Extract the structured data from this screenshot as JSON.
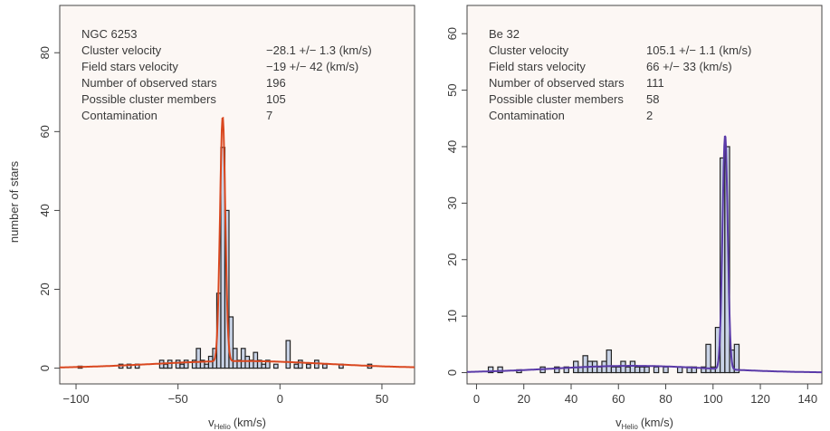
{
  "figure": {
    "ylabel": "number of stars"
  },
  "chart_data": [
    {
      "type": "bar",
      "cluster": "NGC 6253",
      "cluster_color": "#d9342b",
      "fit_color": "#d9471f",
      "info": [
        {
          "label": "Cluster velocity",
          "value": "−28.1 +/− 1.3 (km/s)"
        },
        {
          "label": "Field stars velocity",
          "value": "−19 +/− 42 (km/s)"
        },
        {
          "label": "Number of observed stars",
          "value": "196"
        },
        {
          "label": "Possible cluster members",
          "value": "105"
        },
        {
          "label": "Contamination",
          "value": "7"
        }
      ],
      "xlabel_main": "v",
      "xlabel_sub": "Helio",
      "xlabel_unit": "(km/s)",
      "xlim": [
        -108,
        66
      ],
      "ylim": [
        -4,
        92
      ],
      "xticks": [
        -100,
        -50,
        0,
        50
      ],
      "yticks": [
        0,
        20,
        40,
        60,
        80
      ],
      "bin_width": 2,
      "bars": [
        {
          "x": -98,
          "count": 0.5
        },
        {
          "x": -78,
          "count": 1
        },
        {
          "x": -74,
          "count": 1
        },
        {
          "x": -70,
          "count": 1
        },
        {
          "x": -58,
          "count": 2
        },
        {
          "x": -56,
          "count": 1
        },
        {
          "x": -54,
          "count": 2
        },
        {
          "x": -50,
          "count": 2
        },
        {
          "x": -48,
          "count": 1
        },
        {
          "x": -46,
          "count": 2
        },
        {
          "x": -42,
          "count": 2
        },
        {
          "x": -40,
          "count": 5
        },
        {
          "x": -38,
          "count": 2
        },
        {
          "x": -36,
          "count": 1
        },
        {
          "x": -34,
          "count": 3
        },
        {
          "x": -32,
          "count": 5
        },
        {
          "x": -30,
          "count": 19
        },
        {
          "x": -28,
          "count": 56
        },
        {
          "x": -26,
          "count": 40
        },
        {
          "x": -24,
          "count": 13
        },
        {
          "x": -22,
          "count": 5
        },
        {
          "x": -20,
          "count": 2
        },
        {
          "x": -18,
          "count": 5
        },
        {
          "x": -16,
          "count": 3
        },
        {
          "x": -14,
          "count": 2
        },
        {
          "x": -12,
          "count": 4
        },
        {
          "x": -10,
          "count": 2
        },
        {
          "x": -8,
          "count": 1
        },
        {
          "x": -6,
          "count": 2
        },
        {
          "x": -2,
          "count": 1
        },
        {
          "x": 4,
          "count": 7
        },
        {
          "x": 8,
          "count": 1
        },
        {
          "x": 10,
          "count": 2
        },
        {
          "x": 14,
          "count": 1
        },
        {
          "x": 18,
          "count": 2
        },
        {
          "x": 22,
          "count": 1
        },
        {
          "x": 30,
          "count": 1
        },
        {
          "x": 44,
          "count": 1
        }
      ],
      "fit": {
        "peak": 62,
        "center": -28.1,
        "sigma": 1.3,
        "field_peak": 1.8,
        "field_center": -19,
        "field_sigma": 42
      }
    },
    {
      "type": "bar",
      "cluster": "Be 32",
      "cluster_color": "#6a4bb5",
      "fit_color": "#5a3aa8",
      "info": [
        {
          "label": "Cluster velocity",
          "value": "105.1 +/− 1.1 (km/s)"
        },
        {
          "label": "Field stars velocity",
          "value": "66 +/− 33 (km/s)"
        },
        {
          "label": "Number of observed stars",
          "value": "111"
        },
        {
          "label": "Possible cluster members",
          "value": "58"
        },
        {
          "label": "Contamination",
          "value": "2"
        }
      ],
      "xlabel_main": "v",
      "xlabel_sub": "Helio",
      "xlabel_unit": "(km/s)",
      "xlim": [
        -4,
        146
      ],
      "ylim": [
        -2,
        65
      ],
      "xticks": [
        0,
        20,
        40,
        60,
        80,
        100,
        120,
        140
      ],
      "yticks": [
        0,
        10,
        20,
        30,
        40,
        50,
        60
      ],
      "bin_width": 2,
      "bars": [
        {
          "x": 6,
          "count": 1
        },
        {
          "x": 10,
          "count": 1
        },
        {
          "x": 18,
          "count": 0.5
        },
        {
          "x": 28,
          "count": 1
        },
        {
          "x": 34,
          "count": 1
        },
        {
          "x": 38,
          "count": 1
        },
        {
          "x": 42,
          "count": 2
        },
        {
          "x": 44,
          "count": 1
        },
        {
          "x": 46,
          "count": 3
        },
        {
          "x": 48,
          "count": 2
        },
        {
          "x": 50,
          "count": 2
        },
        {
          "x": 52,
          "count": 1
        },
        {
          "x": 54,
          "count": 2
        },
        {
          "x": 56,
          "count": 4
        },
        {
          "x": 58,
          "count": 1
        },
        {
          "x": 60,
          "count": 1
        },
        {
          "x": 62,
          "count": 2
        },
        {
          "x": 64,
          "count": 1
        },
        {
          "x": 66,
          "count": 2
        },
        {
          "x": 68,
          "count": 1
        },
        {
          "x": 70,
          "count": 1
        },
        {
          "x": 72,
          "count": 1
        },
        {
          "x": 76,
          "count": 1
        },
        {
          "x": 80,
          "count": 1
        },
        {
          "x": 86,
          "count": 1
        },
        {
          "x": 90,
          "count": 1
        },
        {
          "x": 92,
          "count": 1
        },
        {
          "x": 96,
          "count": 1
        },
        {
          "x": 98,
          "count": 5
        },
        {
          "x": 100,
          "count": 1
        },
        {
          "x": 102,
          "count": 8
        },
        {
          "x": 104,
          "count": 38
        },
        {
          "x": 106,
          "count": 40
        },
        {
          "x": 108,
          "count": 4
        },
        {
          "x": 110,
          "count": 5
        }
      ],
      "fit": {
        "peak": 41.5,
        "center": 105.1,
        "sigma": 1.1,
        "field_peak": 1.2,
        "field_center": 66,
        "field_sigma": 33
      }
    }
  ]
}
